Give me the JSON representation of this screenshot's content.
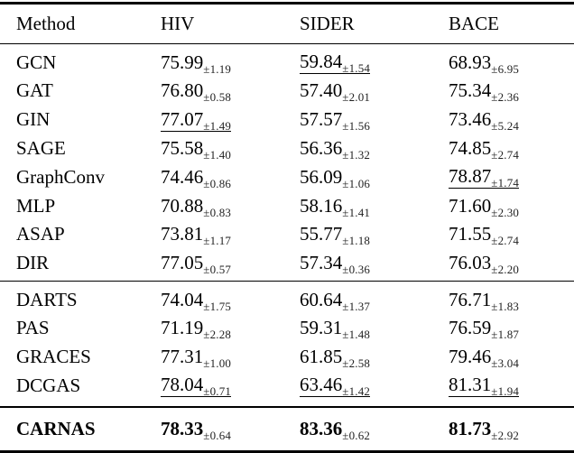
{
  "colors": {
    "text": "#000000",
    "background": "#ffffff",
    "rule": "#000000"
  },
  "table": {
    "columns": [
      "Method",
      "HIV",
      "SIDER",
      "BACE"
    ],
    "groups": [
      {
        "rows": [
          {
            "method": "GCN",
            "cells": [
              {
                "v": "75.99",
                "s": "±1.19"
              },
              {
                "v": "59.84",
                "s": "±1.54",
                "u": true
              },
              {
                "v": "68.93",
                "s": "±6.95"
              }
            ]
          },
          {
            "method": "GAT",
            "cells": [
              {
                "v": "76.80",
                "s": "±0.58"
              },
              {
                "v": "57.40",
                "s": "±2.01"
              },
              {
                "v": "75.34",
                "s": "±2.36"
              }
            ]
          },
          {
            "method": "GIN",
            "cells": [
              {
                "v": "77.07",
                "s": "±1.49",
                "u": true
              },
              {
                "v": "57.57",
                "s": "±1.56"
              },
              {
                "v": "73.46",
                "s": "±5.24"
              }
            ]
          },
          {
            "method": "SAGE",
            "cells": [
              {
                "v": "75.58",
                "s": "±1.40"
              },
              {
                "v": "56.36",
                "s": "±1.32"
              },
              {
                "v": "74.85",
                "s": "±2.74"
              }
            ]
          },
          {
            "method": "GraphConv",
            "cells": [
              {
                "v": "74.46",
                "s": "±0.86"
              },
              {
                "v": "56.09",
                "s": "±1.06"
              },
              {
                "v": "78.87",
                "s": "±1.74",
                "u": true
              }
            ]
          },
          {
            "method": "MLP",
            "cells": [
              {
                "v": "70.88",
                "s": "±0.83"
              },
              {
                "v": "58.16",
                "s": "±1.41"
              },
              {
                "v": "71.60",
                "s": "±2.30"
              }
            ]
          },
          {
            "method": "ASAP",
            "cells": [
              {
                "v": "73.81",
                "s": "±1.17"
              },
              {
                "v": "55.77",
                "s": "±1.18"
              },
              {
                "v": "71.55",
                "s": "±2.74"
              }
            ]
          },
          {
            "method": "DIR",
            "cells": [
              {
                "v": "77.05",
                "s": "±0.57"
              },
              {
                "v": "57.34",
                "s": "±0.36"
              },
              {
                "v": "76.03",
                "s": "±2.20"
              }
            ]
          }
        ]
      },
      {
        "rows": [
          {
            "method": "DARTS",
            "cells": [
              {
                "v": "74.04",
                "s": "±1.75"
              },
              {
                "v": "60.64",
                "s": "±1.37"
              },
              {
                "v": "76.71",
                "s": "±1.83"
              }
            ]
          },
          {
            "method": "PAS",
            "cells": [
              {
                "v": "71.19",
                "s": "±2.28"
              },
              {
                "v": "59.31",
                "s": "±1.48"
              },
              {
                "v": "76.59",
                "s": "±1.87"
              }
            ]
          },
          {
            "method": "GRACES",
            "cells": [
              {
                "v": "77.31",
                "s": "±1.00"
              },
              {
                "v": "61.85",
                "s": "±2.58"
              },
              {
                "v": "79.46",
                "s": "±3.04"
              }
            ]
          },
          {
            "method": "DCGAS",
            "cells": [
              {
                "v": "78.04",
                "s": "±0.71",
                "u": true
              },
              {
                "v": "63.46",
                "s": "±1.42",
                "u": true
              },
              {
                "v": "81.31",
                "s": "±1.94",
                "u": true
              }
            ]
          }
        ]
      },
      {
        "rows": [
          {
            "method": "CARNAS",
            "bold": true,
            "cells": [
              {
                "v": "78.33",
                "s": "±0.64"
              },
              {
                "v": "83.36",
                "s": "±0.62"
              },
              {
                "v": "81.73",
                "s": "±2.92"
              }
            ]
          }
        ]
      }
    ]
  }
}
